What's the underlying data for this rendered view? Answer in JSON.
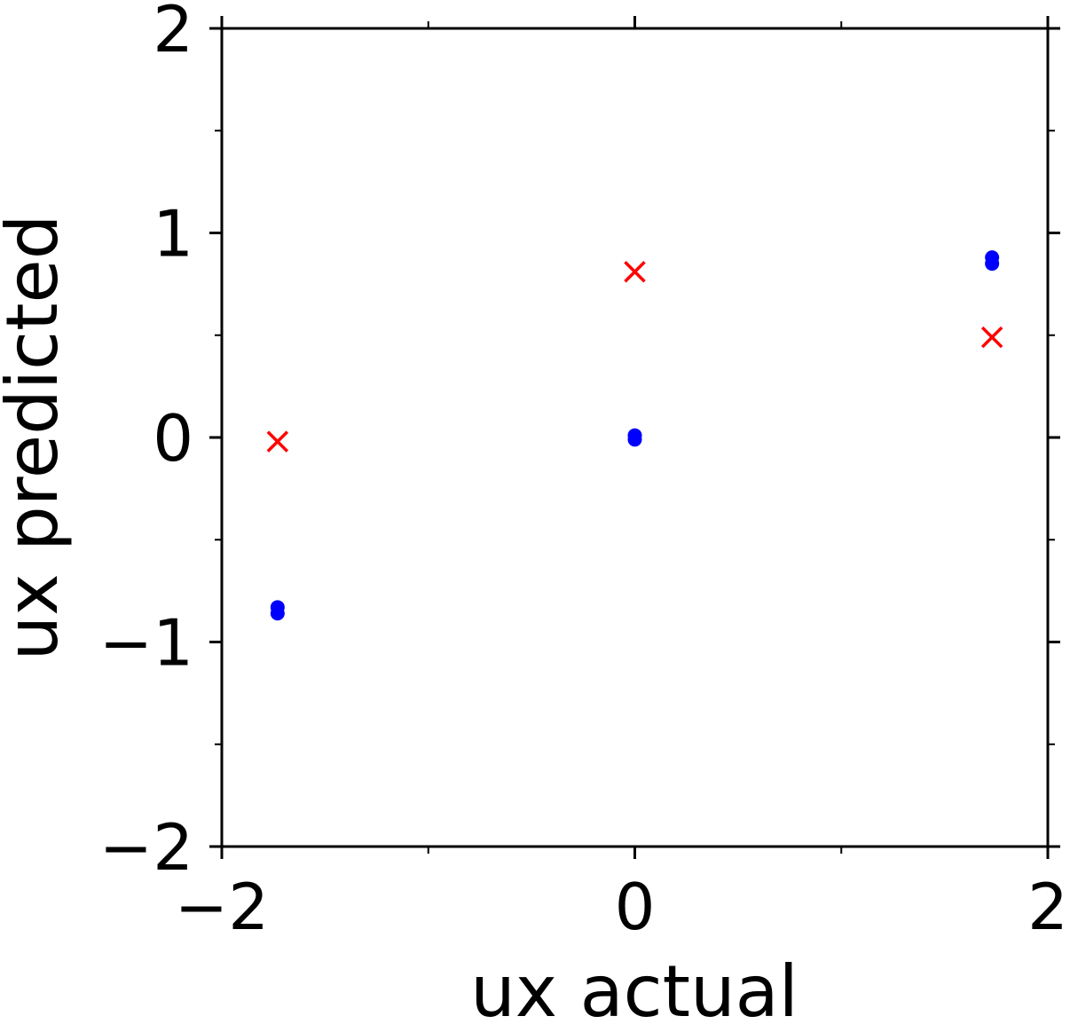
{
  "chart_data": {
    "type": "scatter",
    "xlabel": "ux actual",
    "ylabel": "ux predicted",
    "xlim": [
      -2,
      2
    ],
    "ylim": [
      -2,
      2
    ],
    "x_ticks": [
      -2,
      0,
      2
    ],
    "y_ticks": [
      -2,
      -1,
      0,
      1,
      2
    ],
    "x_tick_labels": [
      "−2",
      "0",
      "2"
    ],
    "y_tick_labels": [
      "−2",
      "−1",
      "0",
      "1",
      "2"
    ],
    "grid": false,
    "series": [
      {
        "marker": "circle",
        "color": "#0000ff",
        "points": [
          {
            "x": -1.73,
            "y": -0.83
          },
          {
            "x": -1.73,
            "y": -0.86
          },
          {
            "x": 0.0,
            "y": 0.01
          },
          {
            "x": 0.0,
            "y": -0.01
          },
          {
            "x": 1.73,
            "y": 0.88
          },
          {
            "x": 1.73,
            "y": 0.85
          }
        ]
      },
      {
        "marker": "x",
        "color": "#ff0000",
        "points": [
          {
            "x": -1.73,
            "y": -0.02
          },
          {
            "x": 0.0,
            "y": 0.81
          },
          {
            "x": 1.73,
            "y": 0.49
          }
        ]
      }
    ]
  }
}
